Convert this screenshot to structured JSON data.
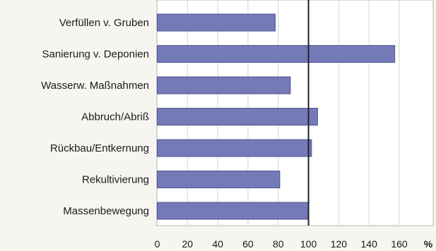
{
  "chart_data": {
    "type": "bar",
    "orientation": "horizontal",
    "categories": [
      "Verfüllen v. Gruben",
      "Sanierung v. Deponien",
      "Wasserw. Maßnahmen",
      "Abbruch/Abriß",
      "Rückbau/Entkernung",
      "Rekultivierung",
      "Massenbewegung"
    ],
    "values": [
      78,
      157,
      88,
      106,
      102,
      81,
      100
    ],
    "xlim": [
      0,
      170
    ],
    "xticks": [
      0,
      20,
      40,
      60,
      80,
      100,
      120,
      140,
      160
    ],
    "x_unit": "%",
    "reference_line": 100,
    "grid": true,
    "bar_color": "#7479b8",
    "bar_edge_color": "#4d5290",
    "background_color": "#ffffff",
    "grid_color": "#d4d4d4"
  }
}
